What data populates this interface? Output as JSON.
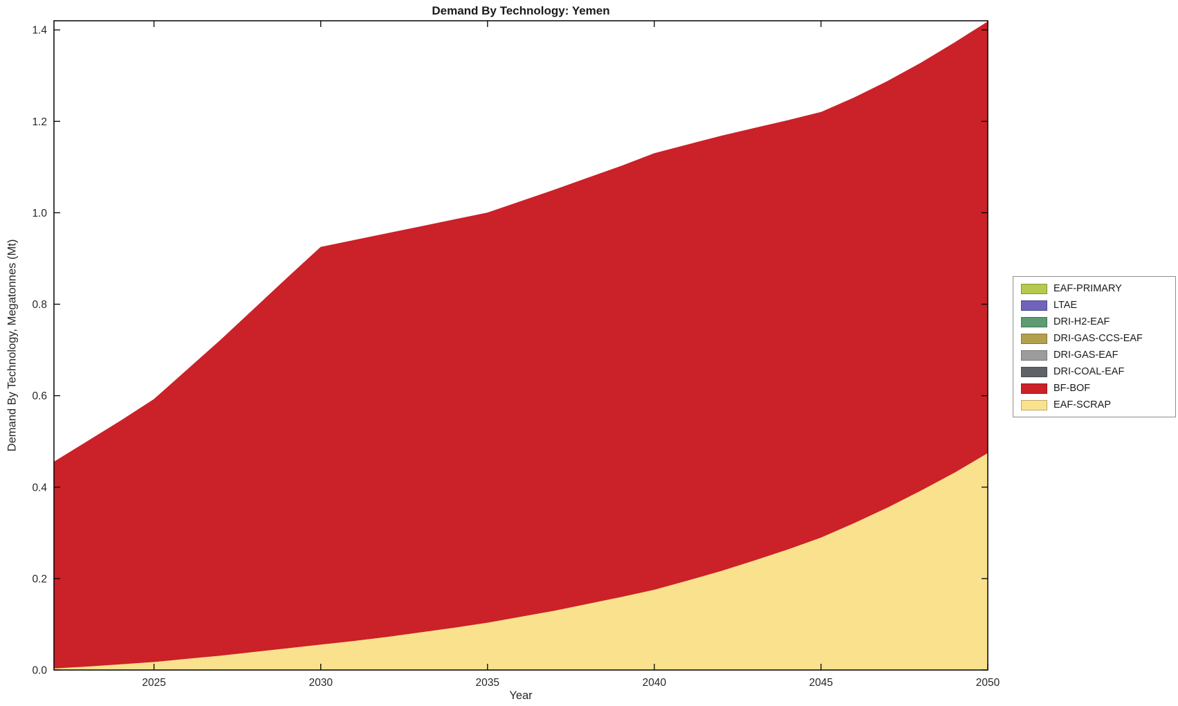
{
  "chart_data": {
    "type": "area",
    "stacked": true,
    "title": "Demand By Technology: Yemen",
    "xlabel": "Year",
    "ylabel": "Demand By Technology, Megatonnes (Mt)",
    "xlim": [
      2022,
      2050
    ],
    "ylim": [
      0,
      1.42
    ],
    "xticks": [
      2025,
      2030,
      2035,
      2040,
      2045,
      2050
    ],
    "yticks": [
      0.0,
      0.2,
      0.4,
      0.6,
      0.8,
      1.0,
      1.2,
      1.4
    ],
    "ytick_labels": [
      "0.0",
      "0.2",
      "0.4",
      "0.6",
      "0.8",
      "1.0",
      "1.2",
      "1.4"
    ],
    "grid": false,
    "x": [
      2022,
      2023,
      2024,
      2025,
      2026,
      2027,
      2028,
      2029,
      2030,
      2031,
      2032,
      2033,
      2034,
      2035,
      2036,
      2037,
      2038,
      2039,
      2040,
      2041,
      2042,
      2043,
      2044,
      2045,
      2046,
      2047,
      2048,
      2049,
      2050
    ],
    "series": [
      {
        "name": "EAF-SCRAP",
        "color": "#fae18d",
        "values": [
          0.004,
          0.008,
          0.013,
          0.018,
          0.025,
          0.032,
          0.04,
          0.048,
          0.056,
          0.064,
          0.073,
          0.083,
          0.093,
          0.104,
          0.117,
          0.13,
          0.145,
          0.16,
          0.176,
          0.196,
          0.217,
          0.24,
          0.264,
          0.29,
          0.322,
          0.356,
          0.393,
          0.432,
          0.475
        ]
      },
      {
        "name": "BF-BOF",
        "color": "#cb2128",
        "values": [
          0.451,
          0.492,
          0.532,
          0.574,
          0.632,
          0.69,
          0.75,
          0.81,
          0.869,
          0.876,
          0.882,
          0.887,
          0.892,
          0.896,
          0.908,
          0.92,
          0.931,
          0.942,
          0.954,
          0.953,
          0.951,
          0.945,
          0.938,
          0.93,
          0.93,
          0.932,
          0.935,
          0.94,
          0.943
        ]
      }
    ],
    "legend": {
      "position": "right",
      "entries": [
        {
          "label": "EAF-PRIMARY",
          "color": "#b6c84e"
        },
        {
          "label": "LTAE",
          "color": "#6f63bb"
        },
        {
          "label": "DRI-H2-EAF",
          "color": "#5d9b72"
        },
        {
          "label": "DRI-GAS-CCS-EAF",
          "color": "#b3a04c"
        },
        {
          "label": "DRI-GAS-EAF",
          "color": "#9c9c9c"
        },
        {
          "label": "DRI-COAL-EAF",
          "color": "#5f6368"
        },
        {
          "label": "BF-BOF",
          "color": "#cb2128"
        },
        {
          "label": "EAF-SCRAP",
          "color": "#fae18d"
        }
      ]
    }
  }
}
